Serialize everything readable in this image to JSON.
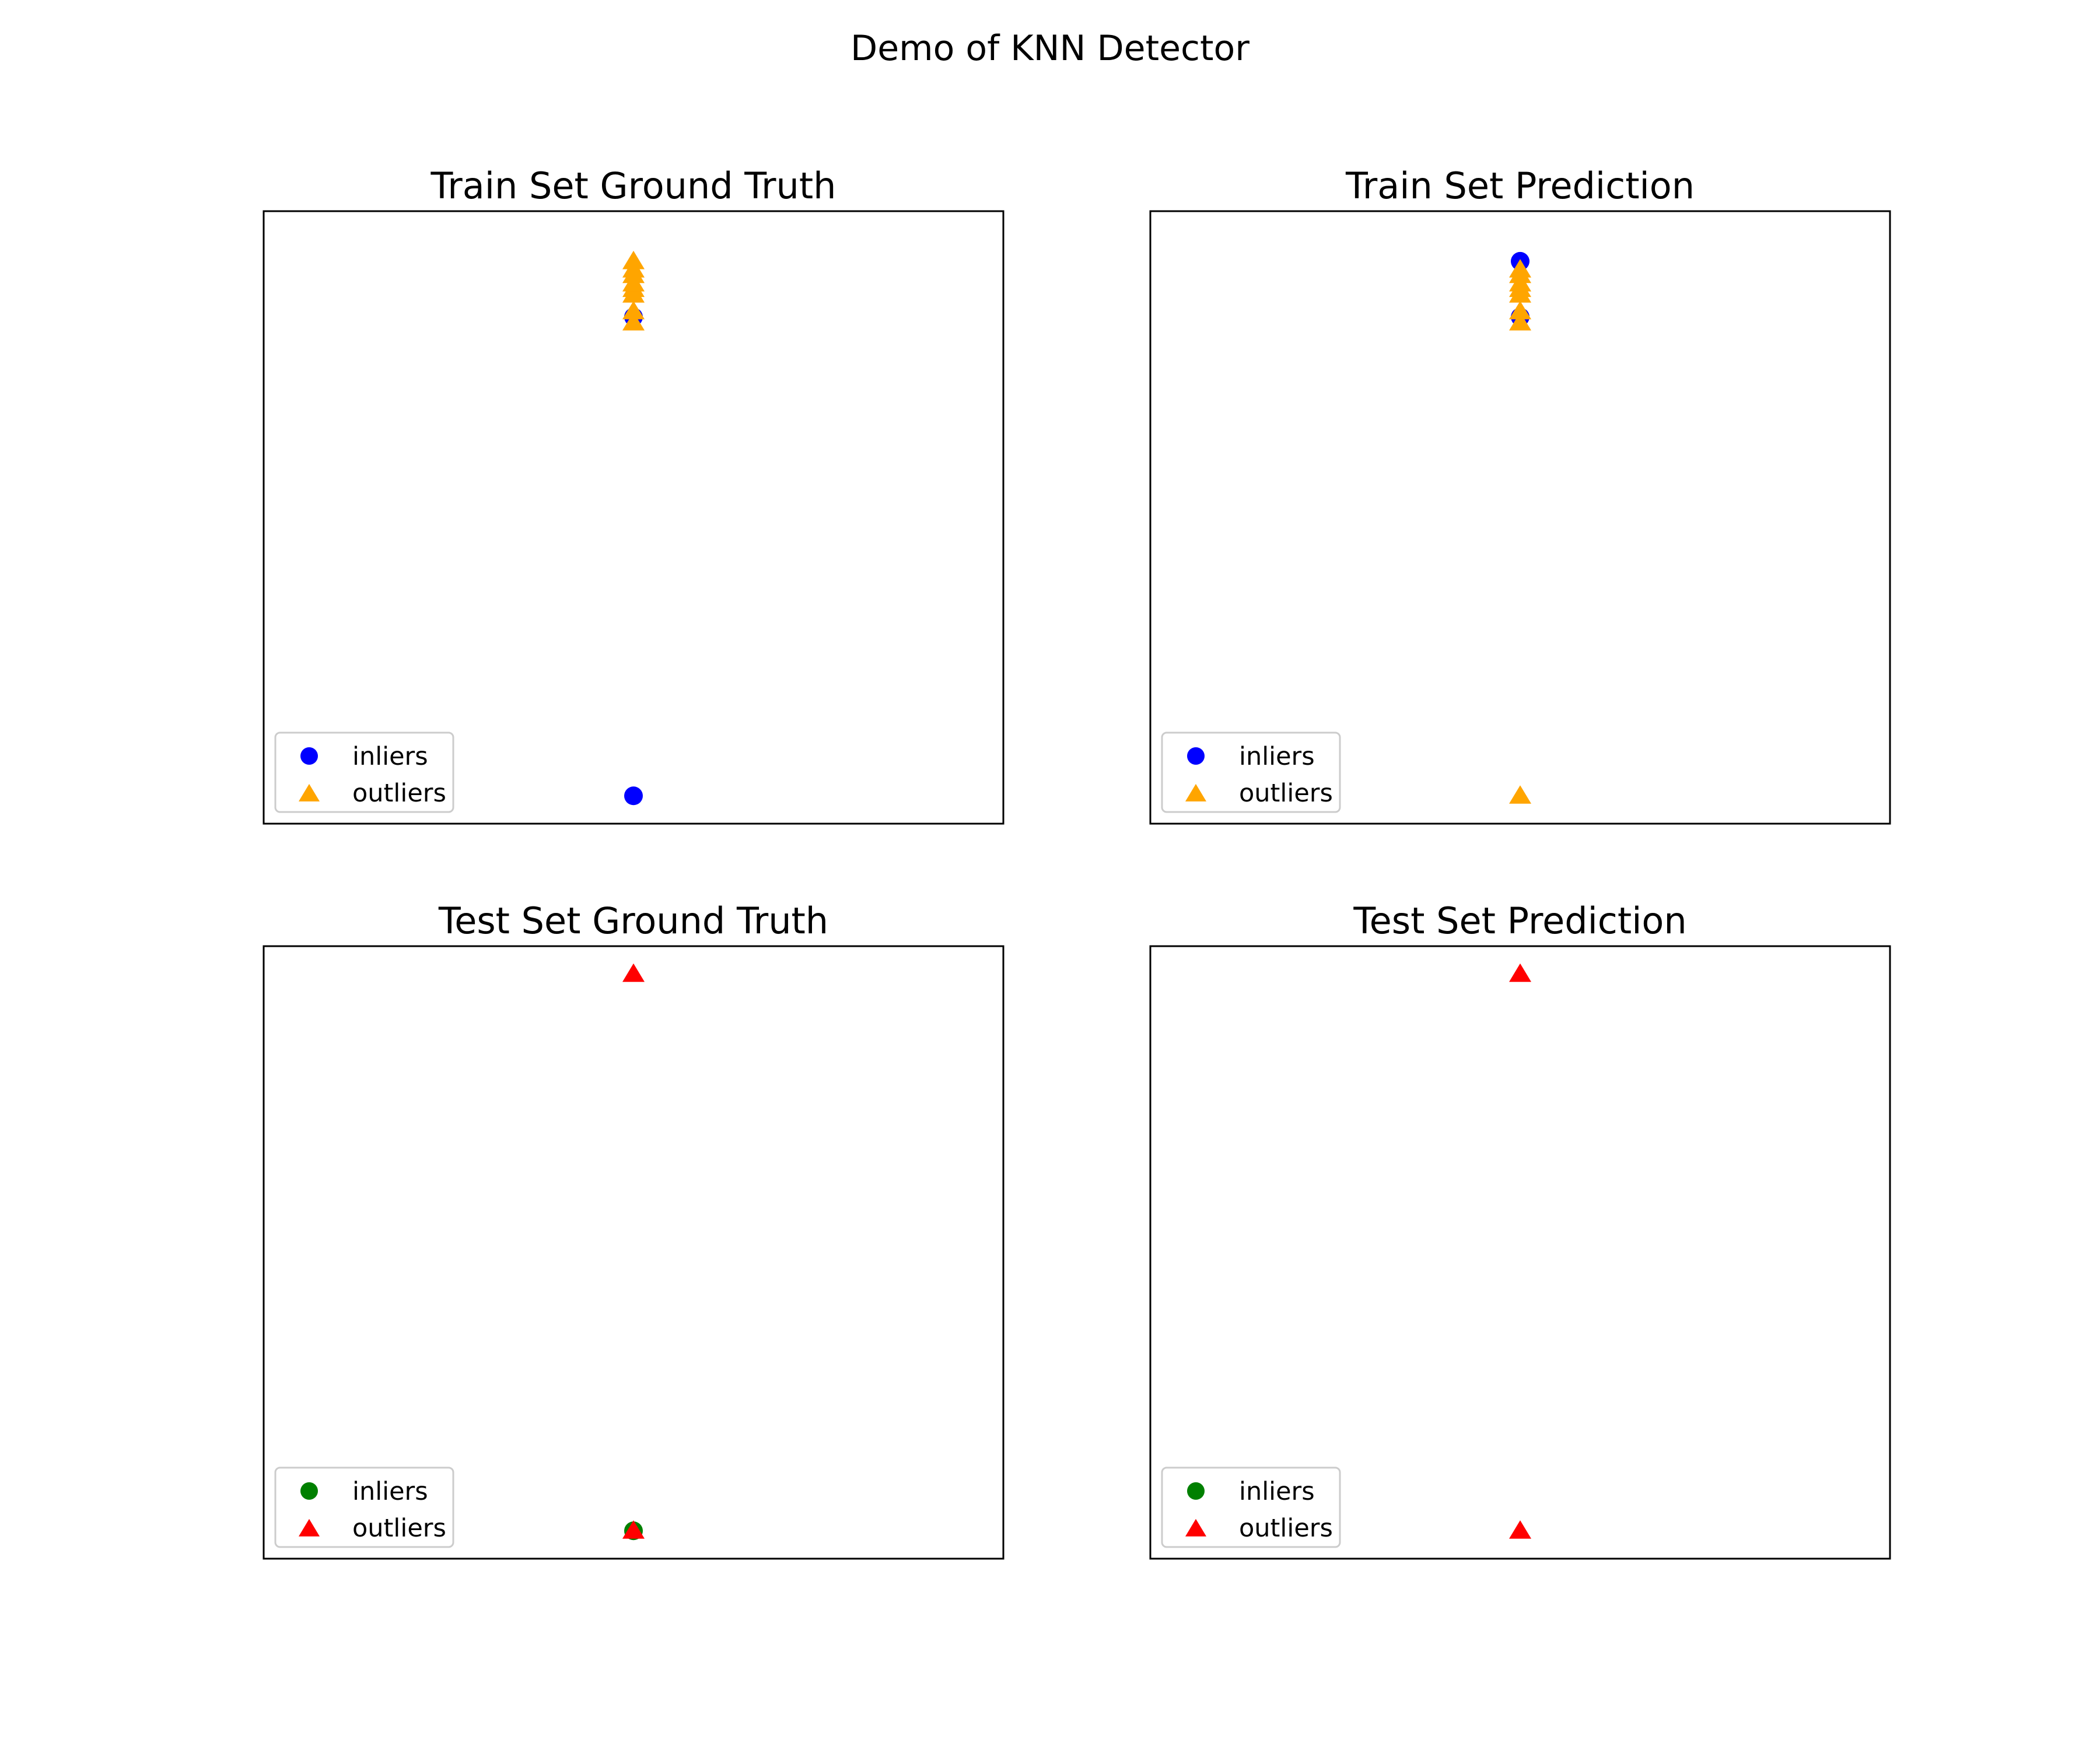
{
  "figure": {
    "title": "Demo of KNN Detector"
  },
  "chart_data": [
    {
      "type": "scatter",
      "title": "Train Set Ground Truth",
      "xlabel": "",
      "ylabel": "",
      "ticks_visible": false,
      "grid": false,
      "legend_position": "lower-left",
      "series": [
        {
          "name": "inliers",
          "marker": "circle",
          "color": "#0000ff",
          "points": [
            [
              0,
              0
            ],
            [
              0,
              0.86
            ]
          ]
        },
        {
          "name": "outliers",
          "marker": "triangle",
          "color": "#ffa500",
          "points": [
            [
              0,
              0.85
            ],
            [
              0,
              0.87
            ],
            [
              0,
              0.9
            ],
            [
              0,
              0.91
            ],
            [
              0,
              0.92
            ],
            [
              0,
              0.935
            ],
            [
              0,
              0.945
            ],
            [
              0,
              0.96
            ]
          ]
        }
      ]
    },
    {
      "type": "scatter",
      "title": "Train Set Prediction",
      "xlabel": "",
      "ylabel": "",
      "ticks_visible": false,
      "grid": false,
      "legend_position": "lower-left",
      "series": [
        {
          "name": "inliers",
          "marker": "circle",
          "color": "#0000ff",
          "points": [
            [
              0,
              0.96
            ],
            [
              0,
              0.86
            ]
          ]
        },
        {
          "name": "outliers",
          "marker": "triangle",
          "color": "#ffa500",
          "points": [
            [
              0,
              0
            ],
            [
              0,
              0.85
            ],
            [
              0,
              0.87
            ],
            [
              0,
              0.9
            ],
            [
              0,
              0.91
            ],
            [
              0,
              0.92
            ],
            [
              0,
              0.935
            ],
            [
              0,
              0.945
            ]
          ]
        }
      ]
    },
    {
      "type": "scatter",
      "title": "Test Set Ground Truth",
      "xlabel": "",
      "ylabel": "",
      "ticks_visible": false,
      "grid": false,
      "legend_position": "lower-left",
      "series": [
        {
          "name": "inliers",
          "marker": "circle",
          "color": "#008000",
          "points": [
            [
              0,
              0
            ]
          ]
        },
        {
          "name": "outliers",
          "marker": "triangle",
          "color": "#ff0000",
          "points": [
            [
              0,
              0
            ],
            [
              0,
              1
            ]
          ]
        }
      ]
    },
    {
      "type": "scatter",
      "title": "Test Set Prediction",
      "xlabel": "",
      "ylabel": "",
      "ticks_visible": false,
      "grid": false,
      "legend_position": "lower-left",
      "series": [
        {
          "name": "inliers",
          "marker": "circle",
          "color": "#008000",
          "points": []
        },
        {
          "name": "outliers",
          "marker": "triangle",
          "color": "#ff0000",
          "points": [
            [
              0,
              0
            ],
            [
              0,
              1
            ]
          ]
        }
      ]
    }
  ]
}
